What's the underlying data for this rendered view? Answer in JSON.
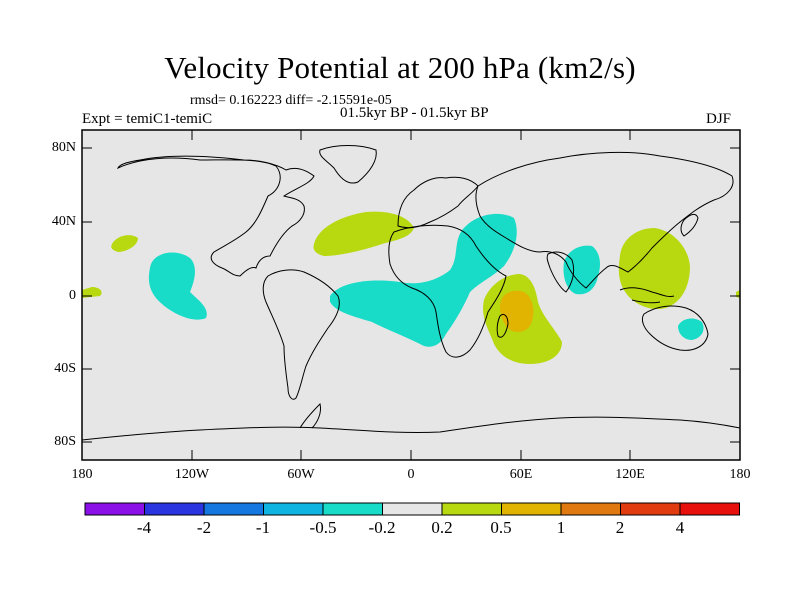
{
  "title": "Velocity Potential at 200 hPa (km2/s)",
  "stats_line": "rmsd= 0.162223 diff= -2.15591e-05",
  "period_line": "01.5kyr BP - 01.5kyr BP",
  "experiment": "Expt = temiC1-temiC",
  "season": "DJF",
  "lat_labels": [
    "80N",
    "40N",
    "0",
    "40S",
    "80S"
  ],
  "lon_labels": [
    "180",
    "120W",
    "60W",
    "0",
    "60E",
    "120E",
    "180"
  ],
  "colorbar": {
    "labels": [
      "-4",
      "-2",
      "-1",
      "-0.5",
      "-0.2",
      "0.2",
      "0.5",
      "1",
      "2",
      "4"
    ],
    "colors": [
      "#8b10e8",
      "#2a35e0",
      "#1578e0",
      "#10b4e0",
      "#18dcc8",
      "#e6e6e6",
      "#b8d810",
      "#e0b400",
      "#e07a10",
      "#e03c10",
      "#e8100c"
    ]
  },
  "field_colors": {
    "land_outline": "#000000",
    "ocean_background": "#e6e6e6",
    "negative_weak": "#18dcc8",
    "positive_weak": "#b8d810",
    "positive_moderate": "#e0b400"
  }
}
